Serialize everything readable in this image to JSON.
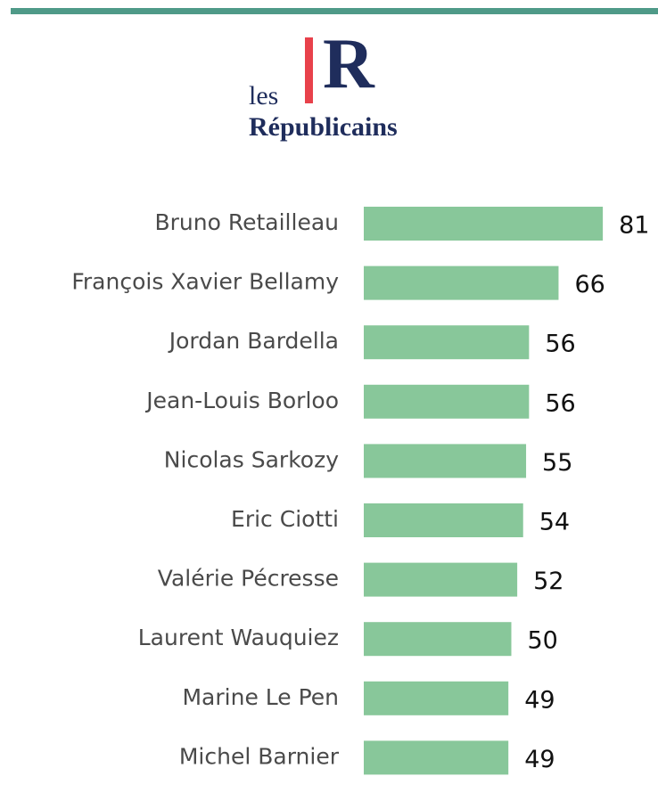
{
  "chart_data": {
    "type": "bar",
    "orientation": "horizontal",
    "logo_text": [
      "les",
      "Républicains"
    ],
    "categories": [
      "Bruno Retailleau",
      "François Xavier Bellamy",
      "Jordan Bardella",
      "Jean-Louis Borloo",
      "Nicolas Sarkozy",
      "Eric Ciotti",
      "Valérie Pécresse",
      "Laurent Wauquiez",
      "Marine Le Pen",
      "Michel Barnier"
    ],
    "values": [
      81,
      66,
      56,
      56,
      55,
      54,
      52,
      50,
      49,
      49
    ],
    "color": "#88c79a"
  }
}
